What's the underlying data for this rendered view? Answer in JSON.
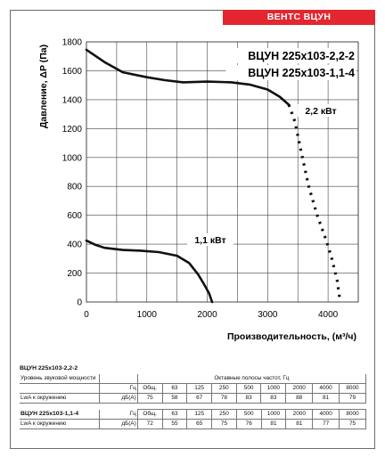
{
  "brand": "ВЕНТС ВЦУН",
  "chart_data": {
    "type": "line",
    "title": "",
    "xlabel": "Производительность, (м³/ч)",
    "ylabel": "Давление, ΔP (Па)",
    "xlim": [
      0,
      4500
    ],
    "ylim": [
      0,
      1800
    ],
    "xticks": [
      0,
      1000,
      2000,
      3000,
      4000
    ],
    "yticks": [
      0,
      200,
      400,
      600,
      800,
      1000,
      1200,
      1400,
      1600,
      1800
    ],
    "grid": true,
    "legend": [
      "ВЦУН 225х103-2,2-2",
      "ВЦУН 225х103-1,1-4"
    ],
    "series": [
      {
        "name": "2,2 кВт",
        "solid": [
          [
            0,
            1745
          ],
          [
            300,
            1660
          ],
          [
            600,
            1590
          ],
          [
            1000,
            1555
          ],
          [
            1300,
            1535
          ],
          [
            1600,
            1520
          ],
          [
            2000,
            1525
          ],
          [
            2400,
            1520
          ],
          [
            2700,
            1505
          ],
          [
            3000,
            1470
          ],
          [
            3200,
            1420
          ],
          [
            3350,
            1365
          ]
        ],
        "dotted": [
          [
            3350,
            1365
          ],
          [
            3450,
            1250
          ],
          [
            3550,
            1050
          ],
          [
            3680,
            800
          ],
          [
            3820,
            600
          ],
          [
            3950,
            450
          ],
          [
            4050,
            320
          ],
          [
            4150,
            150
          ],
          [
            4200,
            0
          ]
        ]
      },
      {
        "name": "1,1 кВт",
        "solid": [
          [
            0,
            425
          ],
          [
            150,
            395
          ],
          [
            300,
            375
          ],
          [
            600,
            360
          ],
          [
            900,
            355
          ],
          [
            1200,
            345
          ],
          [
            1500,
            320
          ],
          [
            1700,
            270
          ],
          [
            1850,
            190
          ],
          [
            1950,
            120
          ],
          [
            2030,
            60
          ],
          [
            2080,
            0
          ]
        ],
        "dotted": []
      }
    ]
  },
  "tables": [
    {
      "name": "ВЦУН 225х103-2,2-2",
      "header_label": "Уровень звуковой мощности",
      "header_bands": "Октавные полосы частот, Гц",
      "row1_unit": "Гц",
      "row2_label": "LwA к окружению",
      "row2_unit": "дБ(А)",
      "freqs": [
        "Общ.",
        "63",
        "125",
        "250",
        "500",
        "1000",
        "2000",
        "4000",
        "8000"
      ],
      "values": [
        "75",
        "58",
        "67",
        "78",
        "83",
        "83",
        "88",
        "81",
        "79"
      ]
    },
    {
      "name": "ВЦУН 225х103-1,1-4",
      "row1_unit": "Гц",
      "row2_label": "LwA к окружению",
      "row2_unit": "дБ(А)",
      "freqs": [
        "Общ.",
        "63",
        "125",
        "250",
        "500",
        "1000",
        "2000",
        "4000",
        "8000"
      ],
      "values": [
        "72",
        "55",
        "65",
        "75",
        "76",
        "81",
        "81",
        "77",
        "75"
      ]
    }
  ]
}
